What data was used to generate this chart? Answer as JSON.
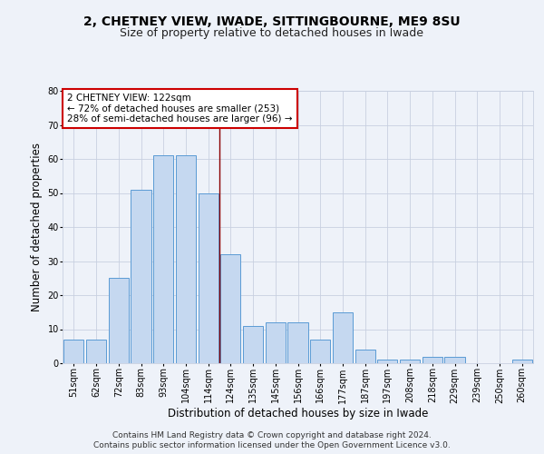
{
  "title1": "2, CHETNEY VIEW, IWADE, SITTINGBOURNE, ME9 8SU",
  "title2": "Size of property relative to detached houses in Iwade",
  "xlabel": "Distribution of detached houses by size in Iwade",
  "ylabel": "Number of detached properties",
  "categories": [
    "51sqm",
    "62sqm",
    "72sqm",
    "83sqm",
    "93sqm",
    "104sqm",
    "114sqm",
    "124sqm",
    "135sqm",
    "145sqm",
    "156sqm",
    "166sqm",
    "177sqm",
    "187sqm",
    "197sqm",
    "208sqm",
    "218sqm",
    "229sqm",
    "239sqm",
    "250sqm",
    "260sqm"
  ],
  "values": [
    7,
    7,
    25,
    51,
    61,
    61,
    50,
    32,
    11,
    12,
    12,
    7,
    15,
    4,
    1,
    1,
    2,
    2,
    0,
    0,
    1
  ],
  "bar_color": "#c5d8f0",
  "bar_edge_color": "#5b9bd5",
  "annotation_text": "2 CHETNEY VIEW: 122sqm\n← 72% of detached houses are smaller (253)\n28% of semi-detached houses are larger (96) →",
  "annotation_box_color": "#ffffff",
  "annotation_box_edge_color": "#cc0000",
  "vline_x": 6.5,
  "vline_color": "#8b0000",
  "ylim": [
    0,
    80
  ],
  "yticks": [
    0,
    10,
    20,
    30,
    40,
    50,
    60,
    70,
    80
  ],
  "footer1": "Contains HM Land Registry data © Crown copyright and database right 2024.",
  "footer2": "Contains public sector information licensed under the Open Government Licence v3.0.",
  "background_color": "#eef2f9",
  "grid_color": "#c8d0e0",
  "title1_fontsize": 10,
  "title2_fontsize": 9,
  "xlabel_fontsize": 8.5,
  "ylabel_fontsize": 8.5,
  "tick_fontsize": 7,
  "annotation_fontsize": 7.5,
  "footer_fontsize": 6.5
}
